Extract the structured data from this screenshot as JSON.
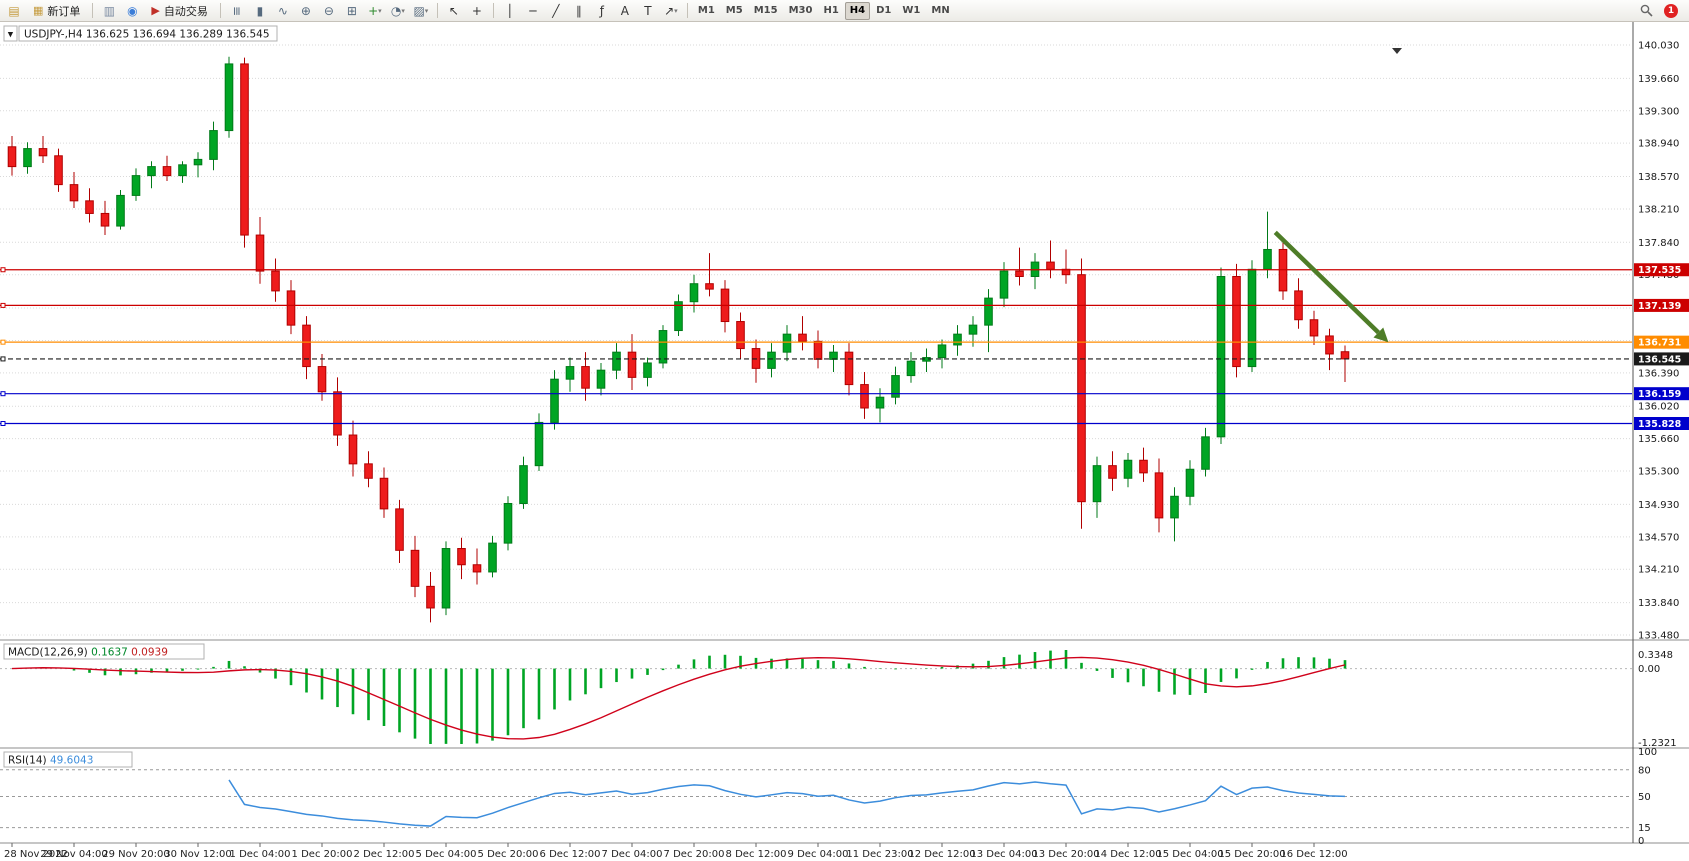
{
  "toolbar": {
    "buttons": {
      "new_order": "新订单",
      "auto_trading": "自动交易"
    },
    "timeframes": [
      "M1",
      "M5",
      "M15",
      "M30",
      "H1",
      "H4",
      "D1",
      "W1",
      "MN"
    ],
    "active_timeframe": "H4",
    "notification_count": "1",
    "items": [
      {
        "t": "icon",
        "name": "new-chart-icon",
        "g": "▤",
        "c": "#c49a3c"
      },
      {
        "t": "btn",
        "name": "new-order-button",
        "g": "▦",
        "gc": "#c49a3c",
        "label_key": "new_order"
      },
      {
        "t": "sep"
      },
      {
        "t": "icon",
        "name": "charts-window-icon",
        "g": "▥",
        "c": "#7a8aa0"
      },
      {
        "t": "icon",
        "name": "community-icon",
        "g": "◉",
        "c": "#3b7dd8"
      },
      {
        "t": "btn",
        "name": "auto-trading-button",
        "g": "▶",
        "gc": "#c03028",
        "label_key": "auto_trading"
      },
      {
        "t": "sep"
      },
      {
        "t": "icon",
        "name": "chart-bars-icon",
        "g": "≡",
        "c": "#566a7e",
        "rot": 1
      },
      {
        "t": "icon",
        "name": "chart-candles-icon",
        "g": "▮",
        "c": "#566a7e"
      },
      {
        "t": "icon",
        "name": "chart-line-icon",
        "g": "∿",
        "c": "#566a7e"
      },
      {
        "t": "icon",
        "name": "zoom-in-icon",
        "g": "⊕",
        "c": "#566a7e"
      },
      {
        "t": "icon",
        "name": "zoom-out-icon",
        "g": "⊖",
        "c": "#566a7e"
      },
      {
        "t": "icon",
        "name": "tile-windows-icon",
        "g": "⊞",
        "c": "#566a7e"
      },
      {
        "t": "icon",
        "name": "indicators-icon",
        "g": "+",
        "c": "#2d8a2d",
        "dd": 1
      },
      {
        "t": "icon",
        "name": "periods-icon",
        "g": "◔",
        "c": "#566a7e",
        "dd": 1
      },
      {
        "t": "icon",
        "name": "templates-icon",
        "g": "▨",
        "c": "#566a7e",
        "dd": 1
      },
      {
        "t": "sep"
      },
      {
        "t": "icon",
        "name": "cursor-icon",
        "g": "↖",
        "c": "#333333"
      },
      {
        "t": "icon",
        "name": "crosshair-icon",
        "g": "+",
        "c": "#333333"
      },
      {
        "t": "sep"
      },
      {
        "t": "icon",
        "name": "vertical-line-icon",
        "g": "│",
        "c": "#333333"
      },
      {
        "t": "icon",
        "name": "horizontal-line-icon",
        "g": "─",
        "c": "#333333"
      },
      {
        "t": "icon",
        "name": "trendline-icon",
        "g": "╱",
        "c": "#333333"
      },
      {
        "t": "icon",
        "name": "channel-icon",
        "g": "∥",
        "c": "#333333"
      },
      {
        "t": "icon",
        "name": "fibonacci-icon",
        "g": "ƒ",
        "c": "#333333"
      },
      {
        "t": "icon",
        "name": "text-icon",
        "g": "A",
        "c": "#333333"
      },
      {
        "t": "icon",
        "name": "label-icon",
        "g": "T",
        "c": "#333333"
      },
      {
        "t": "icon",
        "name": "arrows-icon",
        "g": "↗",
        "c": "#333333",
        "dd": 1
      },
      {
        "t": "sep"
      },
      {
        "t": "tfs"
      }
    ]
  },
  "chart": {
    "symbol_label": "USDJPY-,H4",
    "ohlc_text": "136.625 136.694 136.289 136.545",
    "price_max": 140.03,
    "price_min": 133.48,
    "price_axis_labels": [
      "140.030",
      "139.660",
      "139.300",
      "138.940",
      "138.570",
      "138.210",
      "137.840",
      "137.480",
      "137.110",
      "136.750",
      "136.390",
      "136.020",
      "135.660",
      "135.300",
      "134.930",
      "134.570",
      "134.210",
      "133.840",
      "133.480"
    ],
    "horizontal_lines": [
      {
        "label": "137.535",
        "value": 137.535,
        "color": "#cc0000",
        "style": "solid"
      },
      {
        "label": "137.139",
        "value": 137.139,
        "color": "#cc0000",
        "style": "solid"
      },
      {
        "label": "136.731",
        "value": 136.731,
        "color": "#ff8c00",
        "style": "solid"
      },
      {
        "label": "136.545",
        "value": 136.545,
        "color": "#1a1a1a",
        "style": "dashed",
        "is_current_price": true
      },
      {
        "label": "136.159",
        "value": 136.159,
        "color": "#0000cc",
        "style": "solid"
      },
      {
        "label": "135.828",
        "value": 135.828,
        "color": "#0000cc",
        "style": "solid"
      }
    ],
    "time_axis_labels": [
      "28 Nov 2022",
      "29 Nov 04:00",
      "29 Nov 20:00",
      "30 Nov 12:00",
      "1 Dec 04:00",
      "1 Dec 20:00",
      "2 Dec 12:00",
      "5 Dec 04:00",
      "5 Dec 20:00",
      "6 Dec 12:00",
      "7 Dec 04:00",
      "7 Dec 20:00",
      "8 Dec 12:00",
      "9 Dec 04:00",
      "11 Dec 23:00",
      "12 Dec 12:00",
      "13 Dec 04:00",
      "13 Dec 20:00",
      "14 Dec 12:00",
      "15 Dec 04:00",
      "15 Dec 20:00",
      "16 Dec 12:00"
    ],
    "arrow": {
      "from_index": 81.5,
      "from_price": 137.95,
      "to_index": 88.8,
      "to_price": 136.73,
      "color": "#4e7d28"
    }
  },
  "macd": {
    "label": "MACD(12,26,9)",
    "value_main": "0.1637",
    "value_signal": "0.0939",
    "axis_labels": [
      "0.3348",
      "0.00",
      "-1.2321"
    ],
    "params": [
      12,
      26,
      9
    ]
  },
  "rsi": {
    "label": "RSI(14)",
    "value": "49.6043",
    "period": 14,
    "axis_labels": [
      "100",
      "80",
      "50",
      "15",
      "0"
    ],
    "levels": [
      80,
      50,
      15
    ]
  },
  "colors": {
    "up": "#00a524",
    "up_border": "#007a18",
    "down": "#ee1c1c",
    "down_border": "#b00000",
    "grid": "#d9d9d9",
    "macd_hist": "#00a524",
    "macd_signal": "#d0021b",
    "rsi_line": "#3c8ddc",
    "axis_text": "#1a1a1a"
  },
  "chart_data": {
    "type": "candlestick",
    "symbol": "USDJPY-",
    "timeframe": "H4",
    "candles": [
      [
        138.9,
        139.02,
        138.58,
        138.68
      ],
      [
        138.68,
        138.95,
        138.6,
        138.88
      ],
      [
        138.88,
        139.02,
        138.72,
        138.8
      ],
      [
        138.8,
        138.88,
        138.4,
        138.48
      ],
      [
        138.48,
        138.62,
        138.22,
        138.3
      ],
      [
        138.3,
        138.44,
        138.06,
        138.16
      ],
      [
        138.16,
        138.3,
        137.92,
        138.02
      ],
      [
        138.02,
        138.42,
        137.98,
        138.36
      ],
      [
        138.36,
        138.66,
        138.3,
        138.58
      ],
      [
        138.58,
        138.74,
        138.44,
        138.68
      ],
      [
        138.68,
        138.8,
        138.52,
        138.58
      ],
      [
        138.58,
        138.74,
        138.5,
        138.7
      ],
      [
        138.7,
        138.84,
        138.56,
        138.76
      ],
      [
        138.76,
        139.18,
        138.64,
        139.08
      ],
      [
        139.08,
        139.9,
        139.0,
        139.82
      ],
      [
        139.82,
        139.89,
        137.78,
        137.92
      ],
      [
        137.92,
        138.12,
        137.38,
        137.52
      ],
      [
        137.52,
        137.66,
        137.18,
        137.3
      ],
      [
        137.3,
        137.42,
        136.82,
        136.92
      ],
      [
        136.92,
        137.02,
        136.32,
        136.46
      ],
      [
        136.46,
        136.6,
        136.08,
        136.18
      ],
      [
        136.18,
        136.34,
        135.58,
        135.7
      ],
      [
        135.7,
        135.86,
        135.24,
        135.38
      ],
      [
        135.38,
        135.52,
        135.12,
        135.22
      ],
      [
        135.22,
        135.34,
        134.78,
        134.88
      ],
      [
        134.88,
        134.98,
        134.28,
        134.42
      ],
      [
        134.42,
        134.58,
        133.9,
        134.02
      ],
      [
        134.02,
        134.18,
        133.62,
        133.78
      ],
      [
        133.78,
        134.52,
        133.7,
        134.44
      ],
      [
        134.44,
        134.56,
        134.1,
        134.26
      ],
      [
        134.26,
        134.44,
        134.04,
        134.18
      ],
      [
        134.18,
        134.58,
        134.12,
        134.5
      ],
      [
        134.5,
        135.02,
        134.42,
        134.94
      ],
      [
        134.94,
        135.46,
        134.88,
        135.36
      ],
      [
        135.36,
        135.94,
        135.3,
        135.84
      ],
      [
        135.84,
        136.42,
        135.76,
        136.32
      ],
      [
        136.32,
        136.56,
        136.18,
        136.46
      ],
      [
        136.46,
        136.62,
        136.08,
        136.22
      ],
      [
        136.22,
        136.5,
        136.14,
        136.42
      ],
      [
        136.42,
        136.72,
        136.32,
        136.62
      ],
      [
        136.62,
        136.82,
        136.2,
        136.34
      ],
      [
        136.34,
        136.56,
        136.24,
        136.5
      ],
      [
        136.5,
        136.92,
        136.44,
        136.86
      ],
      [
        136.86,
        137.26,
        136.8,
        137.18
      ],
      [
        137.18,
        137.48,
        137.06,
        137.38
      ],
      [
        137.38,
        137.72,
        137.24,
        137.32
      ],
      [
        137.32,
        137.42,
        136.84,
        136.96
      ],
      [
        136.96,
        137.06,
        136.54,
        136.66
      ],
      [
        136.66,
        136.76,
        136.28,
        136.44
      ],
      [
        136.44,
        136.72,
        136.34,
        136.62
      ],
      [
        136.62,
        136.92,
        136.52,
        136.82
      ],
      [
        136.82,
        137.02,
        136.64,
        136.74
      ],
      [
        136.74,
        136.86,
        136.44,
        136.54
      ],
      [
        136.54,
        136.7,
        136.4,
        136.62
      ],
      [
        136.62,
        136.72,
        136.14,
        136.26
      ],
      [
        136.26,
        136.4,
        135.88,
        136.0
      ],
      [
        136.0,
        136.22,
        135.84,
        136.12
      ],
      [
        136.12,
        136.46,
        136.04,
        136.36
      ],
      [
        136.36,
        136.62,
        136.28,
        136.52
      ],
      [
        136.52,
        136.66,
        136.4,
        136.56
      ],
      [
        136.56,
        136.76,
        136.44,
        136.7
      ],
      [
        136.7,
        136.92,
        136.58,
        136.82
      ],
      [
        136.82,
        137.02,
        136.68,
        136.92
      ],
      [
        136.92,
        137.32,
        136.62,
        137.22
      ],
      [
        137.22,
        137.62,
        137.12,
        137.52
      ],
      [
        137.52,
        137.78,
        137.36,
        137.46
      ],
      [
        137.46,
        137.72,
        137.32,
        137.62
      ],
      [
        137.62,
        137.86,
        137.44,
        137.54
      ],
      [
        137.54,
        137.76,
        137.38,
        137.48
      ],
      [
        137.48,
        137.66,
        134.66,
        134.96
      ],
      [
        134.96,
        135.46,
        134.78,
        135.36
      ],
      [
        135.36,
        135.52,
        135.08,
        135.22
      ],
      [
        135.22,
        135.5,
        135.12,
        135.42
      ],
      [
        135.42,
        135.56,
        135.18,
        135.28
      ],
      [
        135.28,
        135.44,
        134.62,
        134.78
      ],
      [
        134.78,
        135.12,
        134.52,
        135.02
      ],
      [
        135.02,
        135.42,
        134.92,
        135.32
      ],
      [
        135.32,
        135.78,
        135.24,
        135.68
      ],
      [
        135.68,
        137.56,
        135.6,
        137.46
      ],
      [
        137.46,
        137.6,
        136.34,
        136.46
      ],
      [
        136.46,
        137.64,
        136.4,
        137.54
      ],
      [
        137.54,
        138.18,
        137.44,
        137.76
      ],
      [
        137.76,
        137.84,
        137.2,
        137.3
      ],
      [
        137.3,
        137.44,
        136.88,
        136.98
      ],
      [
        136.98,
        137.08,
        136.7,
        136.8
      ],
      [
        136.8,
        136.88,
        136.42,
        136.6
      ],
      [
        136.625,
        136.694,
        136.289,
        136.545
      ]
    ]
  }
}
